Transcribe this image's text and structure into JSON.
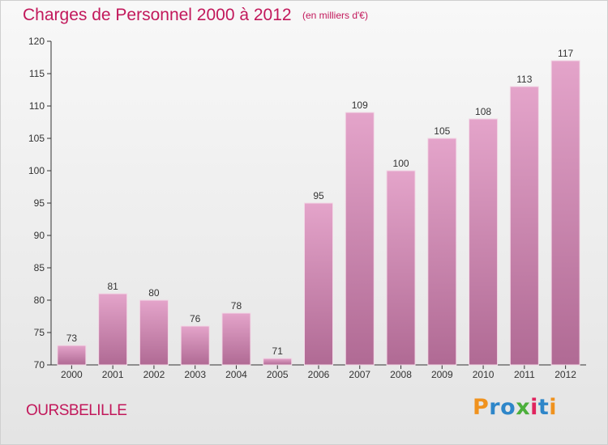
{
  "header": {
    "title": "Charges de Personnel 2000 à 2012",
    "unit": "(en milliers d'€)"
  },
  "footer": {
    "city": "OURSBELILLE",
    "brand": "Proxiti"
  },
  "colors": {
    "bar_top": "#e4a4ca",
    "bar_bottom": "#b06a94",
    "text_accent": "#c2185b"
  },
  "chart_data": {
    "type": "bar",
    "title": "Charges de Personnel 2000 à 2012",
    "subtitle": "(en milliers d'€)",
    "xlabel": "",
    "ylabel": "",
    "categories": [
      "2000",
      "2001",
      "2002",
      "2003",
      "2004",
      "2005",
      "2006",
      "2007",
      "2008",
      "2009",
      "2010",
      "2011",
      "2012"
    ],
    "values": [
      73,
      81,
      80,
      76,
      78,
      71,
      95,
      109,
      100,
      105,
      108,
      113,
      117
    ],
    "ylim": [
      70,
      120
    ],
    "yticks": [
      70,
      75,
      80,
      85,
      90,
      95,
      100,
      105,
      110,
      115,
      120
    ],
    "grid": false,
    "data_labels": true
  }
}
